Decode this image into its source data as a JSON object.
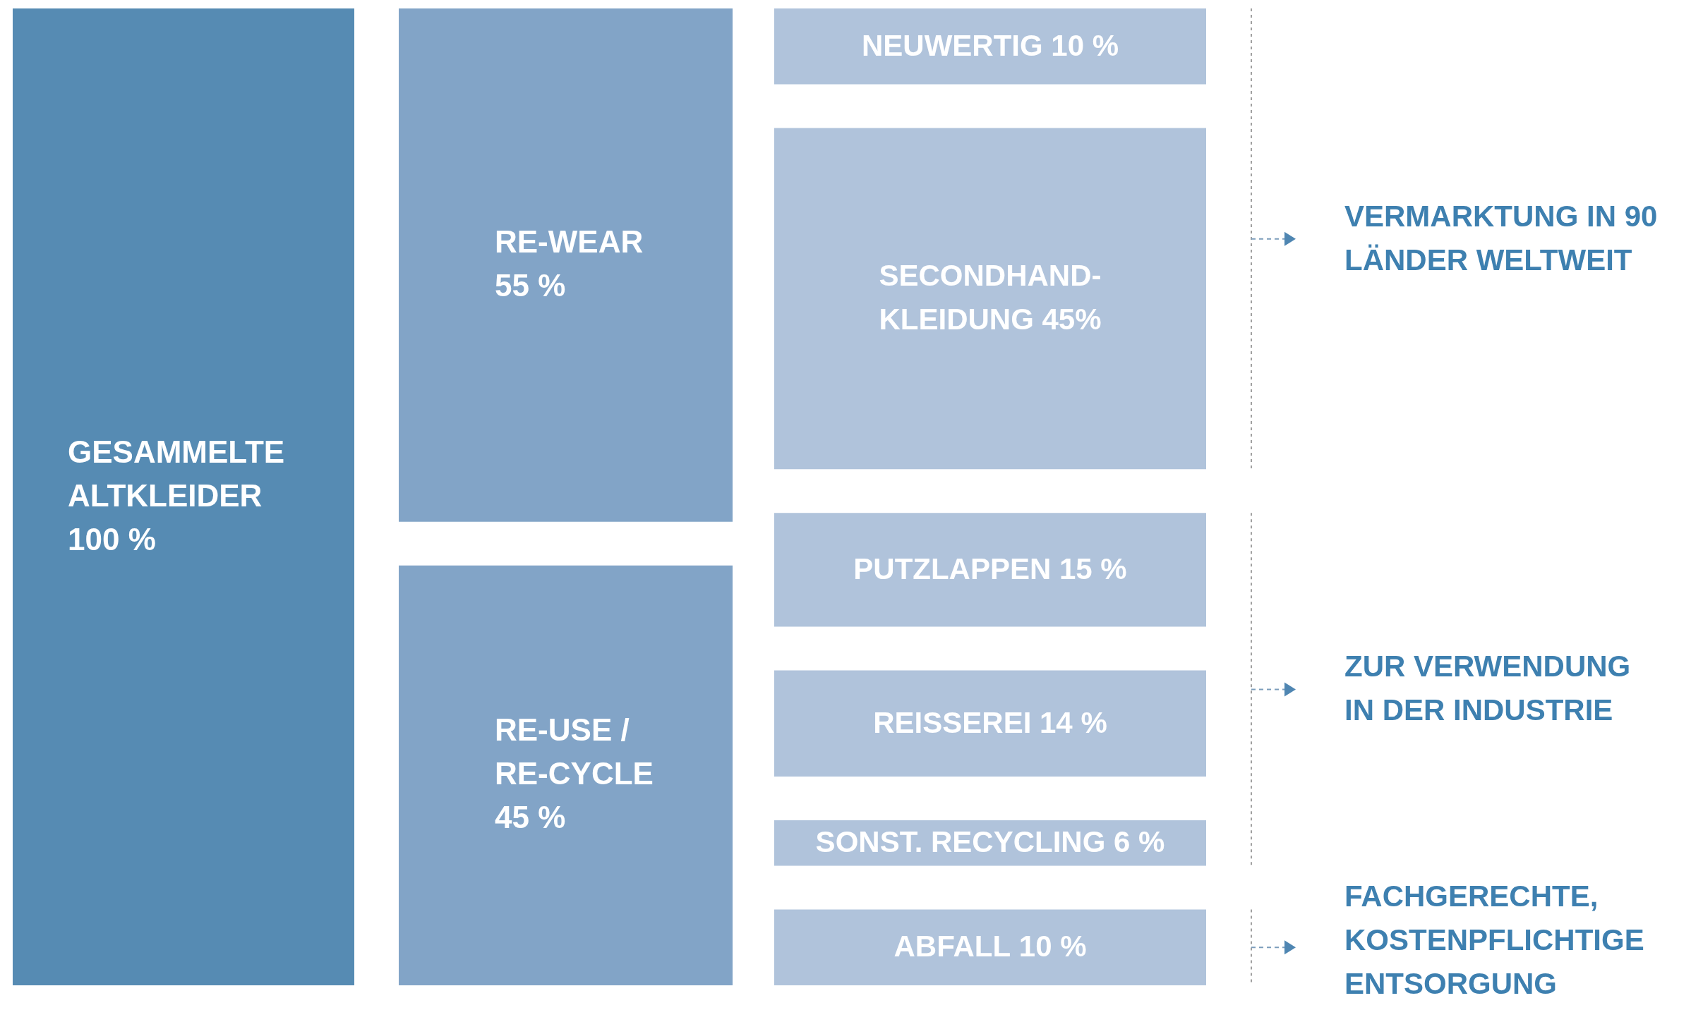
{
  "chart_data": {
    "type": "other",
    "categories": [
      "GESAMMELTE\nALTKLEIDER",
      "RE-WEAR",
      "RE-USE /\nRE-CYCLE",
      "NEUWERTIG",
      "SECONDHAND-\nKLEIDUNG",
      "PUTZLAPPEN",
      "REISSEREI",
      "SONST. RECYCLING",
      "ABFALL"
    ],
    "values": [
      100,
      55,
      45,
      10,
      45,
      15,
      14,
      6,
      10
    ],
    "value_labels": [
      "100 %",
      "55 %",
      "45 %",
      "10 %",
      "45%",
      "15 %",
      "14 %",
      "6 %",
      "10 %"
    ],
    "colors": [
      "#568bb3",
      "#82a4c7",
      "#82a4c7",
      "#b0c3db",
      "#b0c3db",
      "#b0c3db",
      "#b0c3db",
      "#b0c3db",
      "#b0c3db"
    ],
    "annotations": [
      {
        "text": "VERMARKTUNG IN 90\nLÄNDER WELTWEIT",
        "y": "NEUWERTIG"
      },
      {
        "text": "ZUR VERWENDUNG\nIN DER INDUSTRIE",
        "y": "PUTZLAPPEN"
      },
      {
        "text": "FACHGERECHTE,\nKOSTENPFLICHTIGE\nENTSORGUNG",
        "y": "ABFALL"
      }
    ]
  }
}
